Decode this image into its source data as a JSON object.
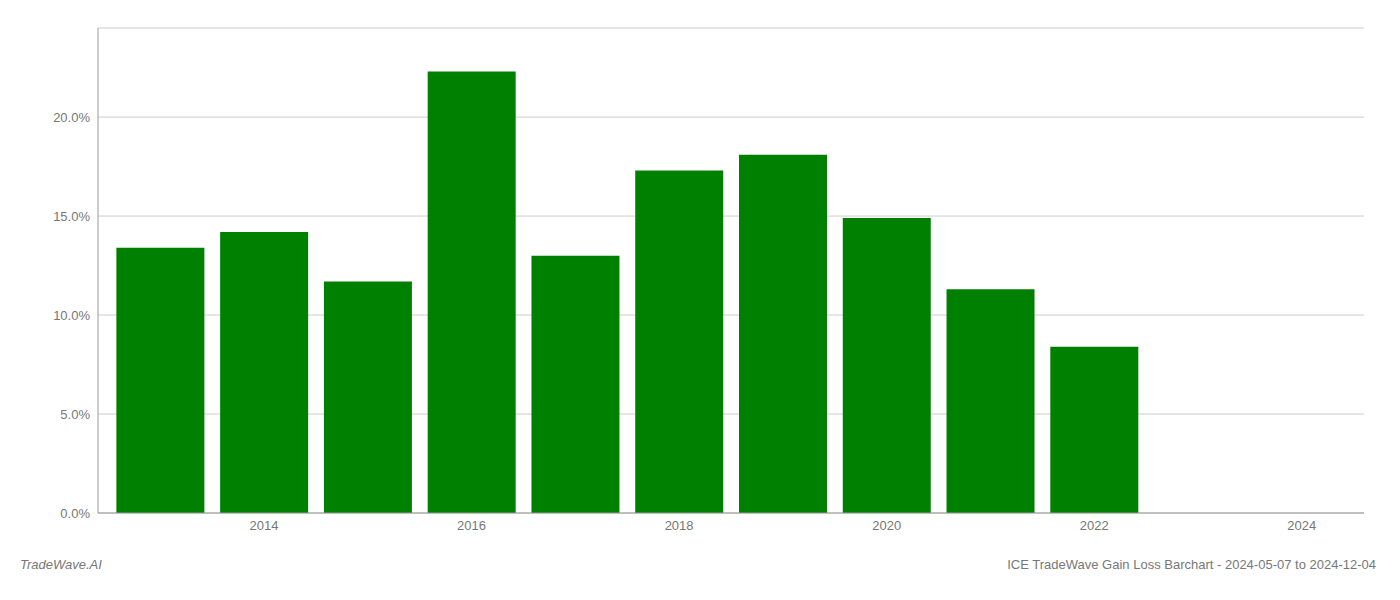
{
  "chart_data": {
    "type": "bar",
    "x": [
      2013,
      2014,
      2015,
      2016,
      2017,
      2018,
      2019,
      2020,
      2021,
      2022
    ],
    "values": [
      0.134,
      0.142,
      0.117,
      0.223,
      0.13,
      0.173,
      0.181,
      0.149,
      0.113,
      0.084
    ],
    "color": "#008000",
    "xlim": [
      2012.4,
      2024.6
    ],
    "xticks": [
      2014,
      2016,
      2018,
      2020,
      2022,
      2024
    ],
    "ylim": [
      0,
      0.245
    ],
    "yticks": [
      {
        "value": 0.0,
        "label": "0.0%"
      },
      {
        "value": 0.05,
        "label": "5.0%"
      },
      {
        "value": 0.1,
        "label": "10.0%"
      },
      {
        "value": 0.15,
        "label": "15.0%"
      },
      {
        "value": 0.2,
        "label": "20.0%"
      }
    ],
    "grid": true,
    "annotations": [
      "TradeWave.AI",
      "ICE TradeWave Gain Loss Barchart - 2024-05-07 to 2024-12-04"
    ]
  }
}
